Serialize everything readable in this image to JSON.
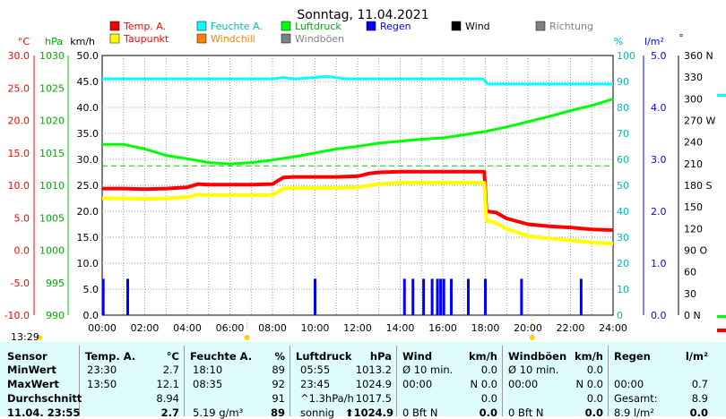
{
  "chart_data": {
    "type": "line",
    "title": "Sonntag, 11.04.2021",
    "legend": {
      "placement": "top",
      "items": [
        {
          "name": "Temp. A.",
          "color": "#ff0000"
        },
        {
          "name": "Feuchte A.",
          "color": "#00ffff"
        },
        {
          "name": "Luftdruck",
          "color": "#00ff00"
        },
        {
          "name": "Regen",
          "color": "#0000ff"
        },
        {
          "name": "Wind",
          "color": "#000000"
        },
        {
          "name": "Richtung",
          "color": "#808080"
        },
        {
          "name": "Taupunkt",
          "color": "#ffff00"
        },
        {
          "name": "Windchill",
          "color": "#ff8000"
        },
        {
          "name": "Windböen",
          "color": "#808080"
        }
      ]
    },
    "x_ticks": [
      "00:00",
      "02:00",
      "04:00",
      "06:00",
      "08:00",
      "10:00",
      "12:00",
      "14:00",
      "16:00",
      "18:00",
      "20:00",
      "22:00",
      "24:00"
    ],
    "xlim": [
      0,
      24
    ],
    "grid": true,
    "axes": {
      "temp": {
        "unit": "°C",
        "ticks": [
          "30.0",
          "25.0",
          "20.0",
          "15.0",
          "10.0",
          "5.0",
          "0.0",
          "-5.0",
          "-10.0"
        ],
        "range": [
          -10,
          30
        ],
        "color": "#ff0000"
      },
      "press": {
        "unit": "hPa",
        "ticks": [
          "1030",
          "1025",
          "1020",
          "1015",
          "1010",
          "1005",
          "1000",
          "995",
          "990"
        ],
        "range": [
          990,
          1030
        ],
        "color": "#00cc00"
      },
      "wind": {
        "unit": "km/h",
        "ticks": [
          "50.0",
          "45.0",
          "40.0",
          "35.0",
          "30.0",
          "25.0",
          "20.0",
          "15.0",
          "10.0",
          "5.0",
          "0.0"
        ],
        "range": [
          0,
          50
        ],
        "color": "#000000"
      },
      "hum": {
        "unit": "%",
        "ticks": [
          "100",
          "90",
          "80",
          "70",
          "60",
          "50",
          "40",
          "30",
          "20",
          "10",
          "0"
        ],
        "range": [
          0,
          100
        ],
        "color": "#00cccc"
      },
      "rain": {
        "unit": "l/m²",
        "ticks": [
          "5.0",
          "4.0",
          "3.0",
          "2.0",
          "1.0",
          "0.0"
        ],
        "range": [
          0,
          5
        ],
        "color": "#0000ff"
      },
      "dir": {
        "unit": "°",
        "ticks": [
          "360 N",
          "330",
          "300",
          "270 W",
          "240",
          "210",
          "180 S",
          "150",
          "120",
          "90 O",
          "60",
          "30",
          "0 N"
        ],
        "range": [
          0,
          360
        ],
        "color": "#000000"
      }
    },
    "sunrise_label": "",
    "series": [
      {
        "name": "Temp. A.",
        "axis": "temp",
        "color": "#ff0000",
        "width": 4,
        "x": [
          0,
          1,
          2,
          3,
          4,
          4.5,
          5,
          6,
          7,
          8,
          8.5,
          9,
          10,
          11,
          12,
          12.5,
          13,
          14,
          15,
          16,
          17,
          17.95,
          18.05,
          18.5,
          19,
          20,
          21,
          22,
          23,
          24
        ],
        "y": [
          9.5,
          9.5,
          9.4,
          9.5,
          9.7,
          10.2,
          10.1,
          10.1,
          10.1,
          10.2,
          11.2,
          11.3,
          11.3,
          11.3,
          11.4,
          11.8,
          12.0,
          12.1,
          12.1,
          12.1,
          12.1,
          12.1,
          6.0,
          5.8,
          4.9,
          4.0,
          3.7,
          3.5,
          3.2,
          3.1
        ]
      },
      {
        "name": "Taupunkt",
        "axis": "temp",
        "color": "#ffff00",
        "width": 4,
        "x": [
          0,
          1,
          2,
          3,
          4,
          4.5,
          5,
          6,
          7,
          8,
          8.5,
          9,
          10,
          11,
          12,
          13,
          14,
          15,
          16,
          17,
          17.95,
          18.05,
          18.5,
          19,
          20,
          21,
          22,
          23,
          24
        ],
        "y": [
          8.0,
          8.0,
          7.9,
          8.0,
          8.2,
          8.6,
          8.5,
          8.5,
          8.5,
          8.5,
          9.5,
          9.6,
          9.6,
          9.6,
          9.7,
          10.2,
          10.4,
          10.4,
          10.4,
          10.4,
          10.4,
          4.6,
          4.2,
          3.3,
          2.2,
          1.8,
          1.5,
          1.2,
          1.0
        ]
      },
      {
        "name": "Feuchte A.",
        "axis": "hum",
        "color": "#00ffff",
        "width": 3,
        "x": [
          0,
          2,
          4,
          6,
          8,
          8.5,
          9,
          10,
          10.5,
          11,
          11.5,
          12,
          14,
          16,
          17.9,
          18.1,
          20,
          22,
          24
        ],
        "y": [
          91,
          91,
          91,
          91,
          91,
          91.5,
          91,
          91.5,
          92,
          91.5,
          91,
          91,
          91,
          91,
          91,
          89,
          89,
          89,
          89
        ]
      },
      {
        "name": "Luftdruck",
        "axis": "press",
        "color": "#00ff00",
        "width": 3,
        "x": [
          0,
          1,
          2,
          3,
          4,
          5,
          6,
          7,
          8,
          9,
          10,
          11,
          12,
          13,
          14,
          15,
          16,
          17,
          18,
          19,
          20,
          21,
          22,
          23,
          24
        ],
        "y": [
          1016.3,
          1016.3,
          1015.6,
          1014.6,
          1014.1,
          1013.5,
          1013.3,
          1013.5,
          1013.9,
          1014.4,
          1015.0,
          1015.6,
          1016.0,
          1016.5,
          1016.8,
          1017.1,
          1017.3,
          1017.8,
          1018.3,
          1019.0,
          1019.8,
          1020.6,
          1021.5,
          1022.3,
          1023.3
        ]
      },
      {
        "name": "Regen",
        "axis": "rain",
        "color": "#0000ff",
        "type": "bar",
        "x": [
          0.05,
          1.2,
          10.0,
          14.2,
          14.6,
          15.1,
          15.5,
          15.75,
          15.9,
          16.05,
          16.4,
          17.2,
          18.0,
          19.7,
          22.5
        ],
        "y": [
          0.7,
          0.7,
          0.7,
          0.7,
          0.7,
          0.7,
          0.7,
          0.7,
          0.7,
          0.7,
          0.7,
          0.7,
          0.7,
          0.7,
          0.7
        ]
      }
    ],
    "reference_line": {
      "axis": "temp",
      "y": 13.0,
      "color": "#00cc00"
    }
  },
  "stats": {
    "time_label": "13:29",
    "headers": {
      "sensor": "Sensor",
      "temp": "Temp. A.",
      "temp_unit": "°C",
      "hum": "Feuchte A.",
      "hum_unit": "%",
      "press": "Luftdruck",
      "press_unit": "hPa",
      "wind": "Wind",
      "wind_unit": "km/h",
      "gust": "Windböen",
      "gust_unit": "km/h",
      "rain": "Regen",
      "rain_unit": "l/m²"
    },
    "rows": [
      {
        "label": "MinWert",
        "temp_t": "23:30",
        "temp_v": "2.7",
        "hum_t": "18:10",
        "hum_v": "89",
        "press_t": "05:55",
        "press_v": "1013.2",
        "wind_t": "Ø 10 min.",
        "wind_v": "0.0",
        "gust_t": "Ø 10 min.",
        "gust_v": "0.0",
        "rain_t": "",
        "rain_v": ""
      },
      {
        "label": "MaxWert",
        "temp_t": "13:50",
        "temp_v": "12.1",
        "hum_t": "08:35",
        "hum_v": "92",
        "press_t": "23:45",
        "press_v": "1024.9",
        "wind_t": "00:00",
        "wind_v": "N 0.0",
        "gust_t": "00:00",
        "gust_v": "N 0.0",
        "rain_t": "00:00",
        "rain_v": "0.7"
      },
      {
        "label": "Durchschnitt",
        "temp_t": "",
        "temp_v": "8.94",
        "hum_t": "",
        "hum_v": "91",
        "press_t": "^1.3hPa/h",
        "press_v": "1017.5",
        "wind_t": "",
        "wind_v": "0.0",
        "gust_t": "",
        "gust_v": "0.0",
        "rain_t": "Gesamt:",
        "rain_v": "8.9"
      },
      {
        "label": "11.04. 23:55",
        "temp_t": "",
        "temp_v": "2.7",
        "hum_t": "5.19 g/m³",
        "hum_v": "89",
        "press_t": "sonnig",
        "press_v": "⬆1024.9",
        "wind_t": "0 Bft N",
        "wind_v": "0.0",
        "gust_t": "0 Bft N",
        "gust_v": "0.0",
        "rain_t": "8.9 l/m²",
        "rain_v": "0.0"
      }
    ]
  }
}
